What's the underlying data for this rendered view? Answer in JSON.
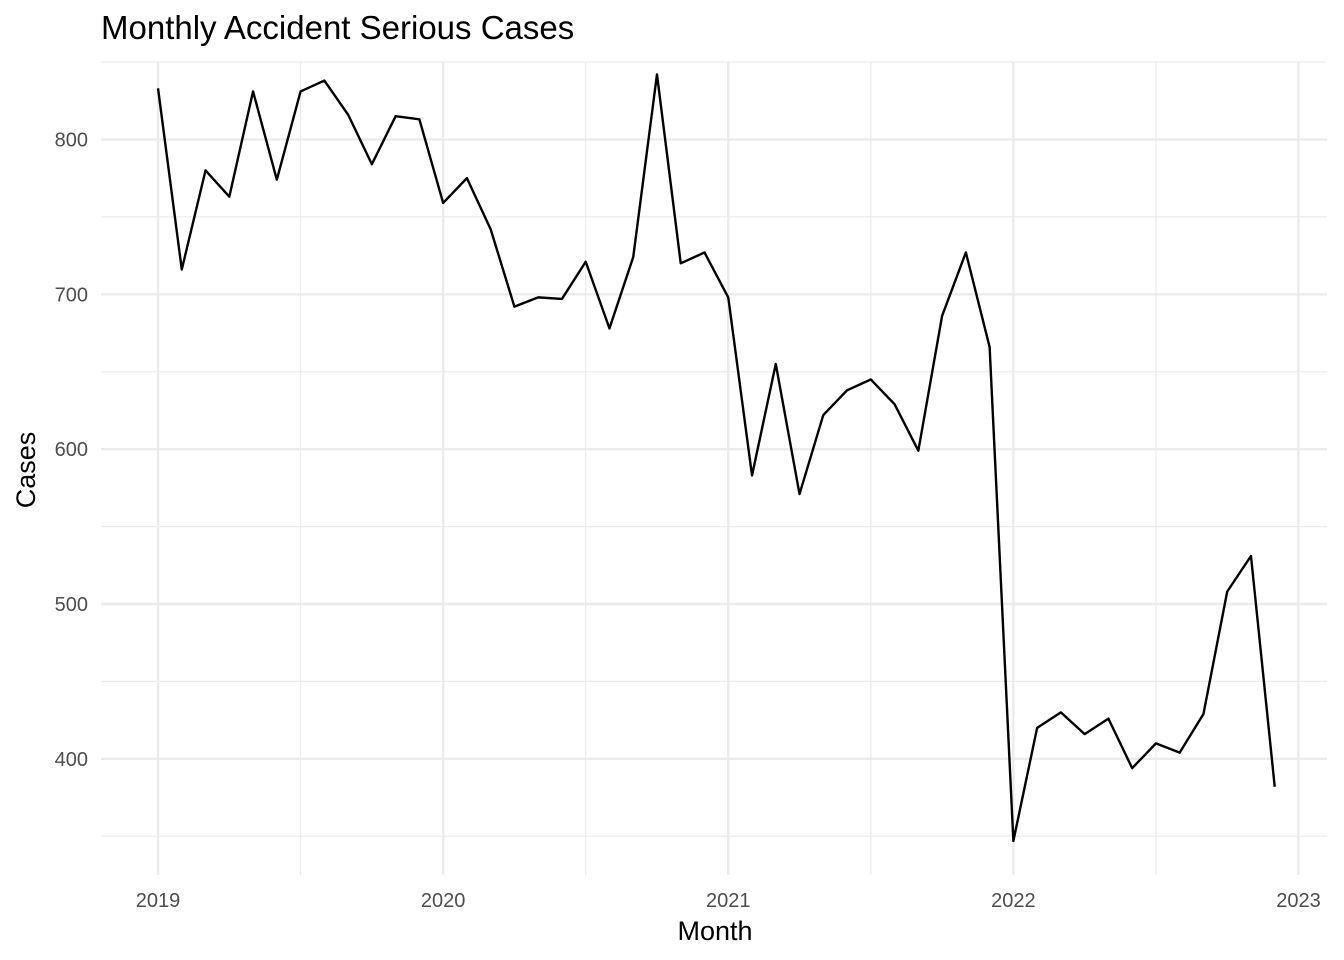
{
  "chart_data": {
    "type": "line",
    "title": "Monthly Accident Serious Cases",
    "xlabel": "Month",
    "ylabel": "Cases",
    "xlim": [
      2018.8,
      2023.1
    ],
    "ylim": [
      325,
      850
    ],
    "x_ticks": [
      2019,
      2020,
      2021,
      2022,
      2023
    ],
    "x_minor_ticks": [
      2019.5,
      2020.5,
      2021.5,
      2022.5
    ],
    "y_ticks": [
      400,
      500,
      600,
      700,
      800
    ],
    "y_minor_ticks": [
      350,
      450,
      550,
      650,
      750,
      850
    ],
    "grid": true,
    "legend": "none",
    "series": [
      {
        "name": "Cases",
        "color": "#000000",
        "x": [
          "2019-01",
          "2019-02",
          "2019-03",
          "2019-04",
          "2019-05",
          "2019-06",
          "2019-07",
          "2019-08",
          "2019-09",
          "2019-10",
          "2019-11",
          "2019-12",
          "2020-01",
          "2020-02",
          "2020-03",
          "2020-04",
          "2020-05",
          "2020-06",
          "2020-07",
          "2020-08",
          "2020-09",
          "2020-10",
          "2020-11",
          "2020-12",
          "2021-01",
          "2021-02",
          "2021-03",
          "2021-04",
          "2021-05",
          "2021-06",
          "2021-07",
          "2021-08",
          "2021-09",
          "2021-10",
          "2021-11",
          "2021-12",
          "2022-01",
          "2022-02",
          "2022-03",
          "2022-04",
          "2022-05",
          "2022-06",
          "2022-07",
          "2022-08",
          "2022-09",
          "2022-10",
          "2022-11",
          "2022-12"
        ],
        "values": [
          833,
          716,
          780,
          763,
          831,
          774,
          831,
          838,
          816,
          784,
          815,
          813,
          759,
          775,
          742,
          692,
          698,
          697,
          721,
          678,
          724,
          842,
          720,
          727,
          698,
          583,
          655,
          571,
          622,
          638,
          645,
          629,
          599,
          686,
          727,
          666,
          347,
          420,
          430,
          416,
          426,
          394,
          410,
          404,
          429,
          508,
          531,
          382
        ]
      }
    ]
  }
}
